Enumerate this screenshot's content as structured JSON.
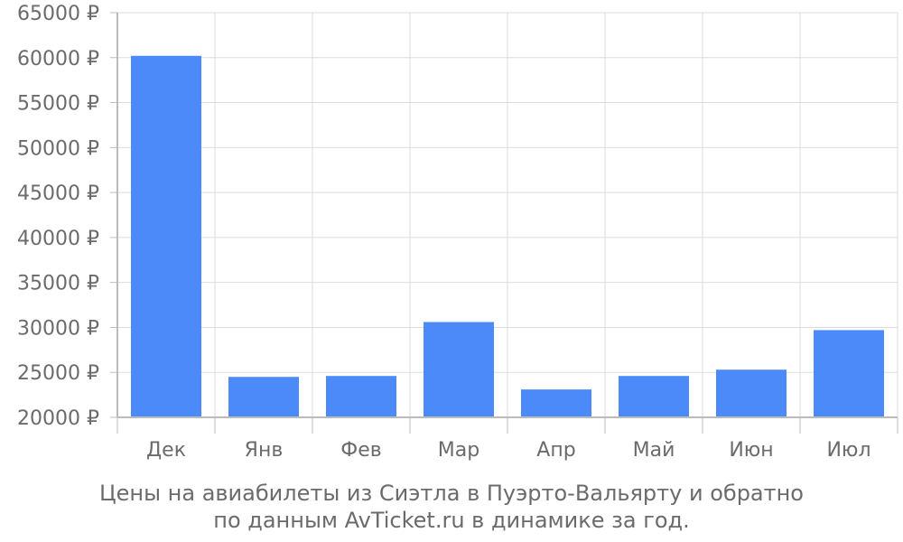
{
  "chart_data": {
    "type": "bar",
    "categories": [
      "Дек",
      "Янв",
      "Фев",
      "Мар",
      "Апр",
      "Май",
      "Июн",
      "Июл"
    ],
    "series": [
      {
        "values": [
          60200,
          24500,
          24600,
          30600,
          23100,
          24600,
          25300,
          29700
        ]
      }
    ],
    "y_ticks": [
      20000,
      25000,
      30000,
      35000,
      40000,
      45000,
      50000,
      55000,
      60000,
      65000
    ],
    "y_tick_labels": [
      "20000 ₽",
      "25000 ₽",
      "30000 ₽",
      "35000 ₽",
      "40000 ₽",
      "45000 ₽",
      "50000 ₽",
      "55000 ₽",
      "60000 ₽",
      "65000 ₽"
    ],
    "ylim": [
      20000,
      65000
    ],
    "grid": true,
    "colors": {
      "bar": "#4d8af9",
      "grid": "#dddddd",
      "axis": "#bbbbbb",
      "text": "#6b6b6b"
    }
  },
  "caption": {
    "line1": "Цены на авиабилеты из Сиэтла в Пуэрто-Вальярту и обратно",
    "line2": "по данным AvTicket.ru в динамике за год."
  }
}
